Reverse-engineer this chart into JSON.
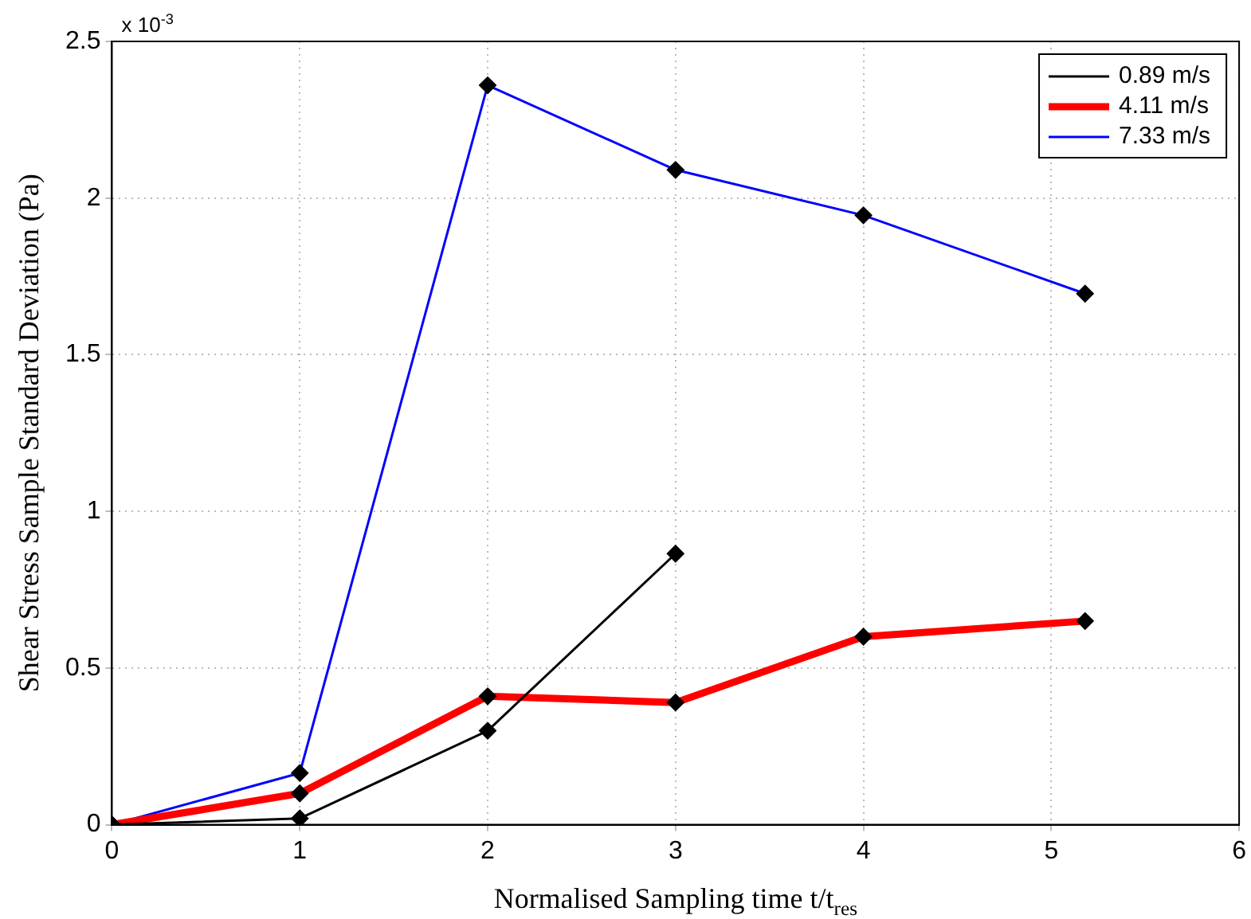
{
  "chart_data": {
    "type": "line",
    "xlabel": "Normalised Sampling time t/t$_{res}$",
    "ylabel": "Shear Stress Sample Standard Deviation (Pa)",
    "annotations": [
      "x 10$^{-3}$"
    ],
    "xlim": [
      0,
      6
    ],
    "xticks": [
      0,
      1,
      2,
      3,
      4,
      5,
      6
    ],
    "ylim": [
      0,
      2.5
    ],
    "yticks": [
      0,
      0.5,
      1,
      1.5,
      2,
      2.5
    ],
    "grid": true,
    "legend": "top right",
    "marker": "diamond",
    "line_style": "solid",
    "series": [
      {
        "name": "0.89 m/s",
        "color": "#000000",
        "x": [
          0,
          1,
          2,
          3
        ],
        "values": [
          0,
          0.02,
          0.3,
          0.865
        ]
      },
      {
        "name": "4.11 m/s",
        "color": "#ff0000",
        "x": [
          0,
          1,
          2,
          3,
          4,
          5.18
        ],
        "values": [
          0,
          0.1,
          0.41,
          0.39,
          0.6,
          0.65
        ]
      },
      {
        "name": "7.33 m/s",
        "color": "#0000ff",
        "x": [
          0,
          1,
          2,
          3,
          4,
          5.18
        ],
        "values": [
          0,
          0.165,
          2.36,
          2.09,
          1.945,
          1.695
        ]
      }
    ]
  }
}
